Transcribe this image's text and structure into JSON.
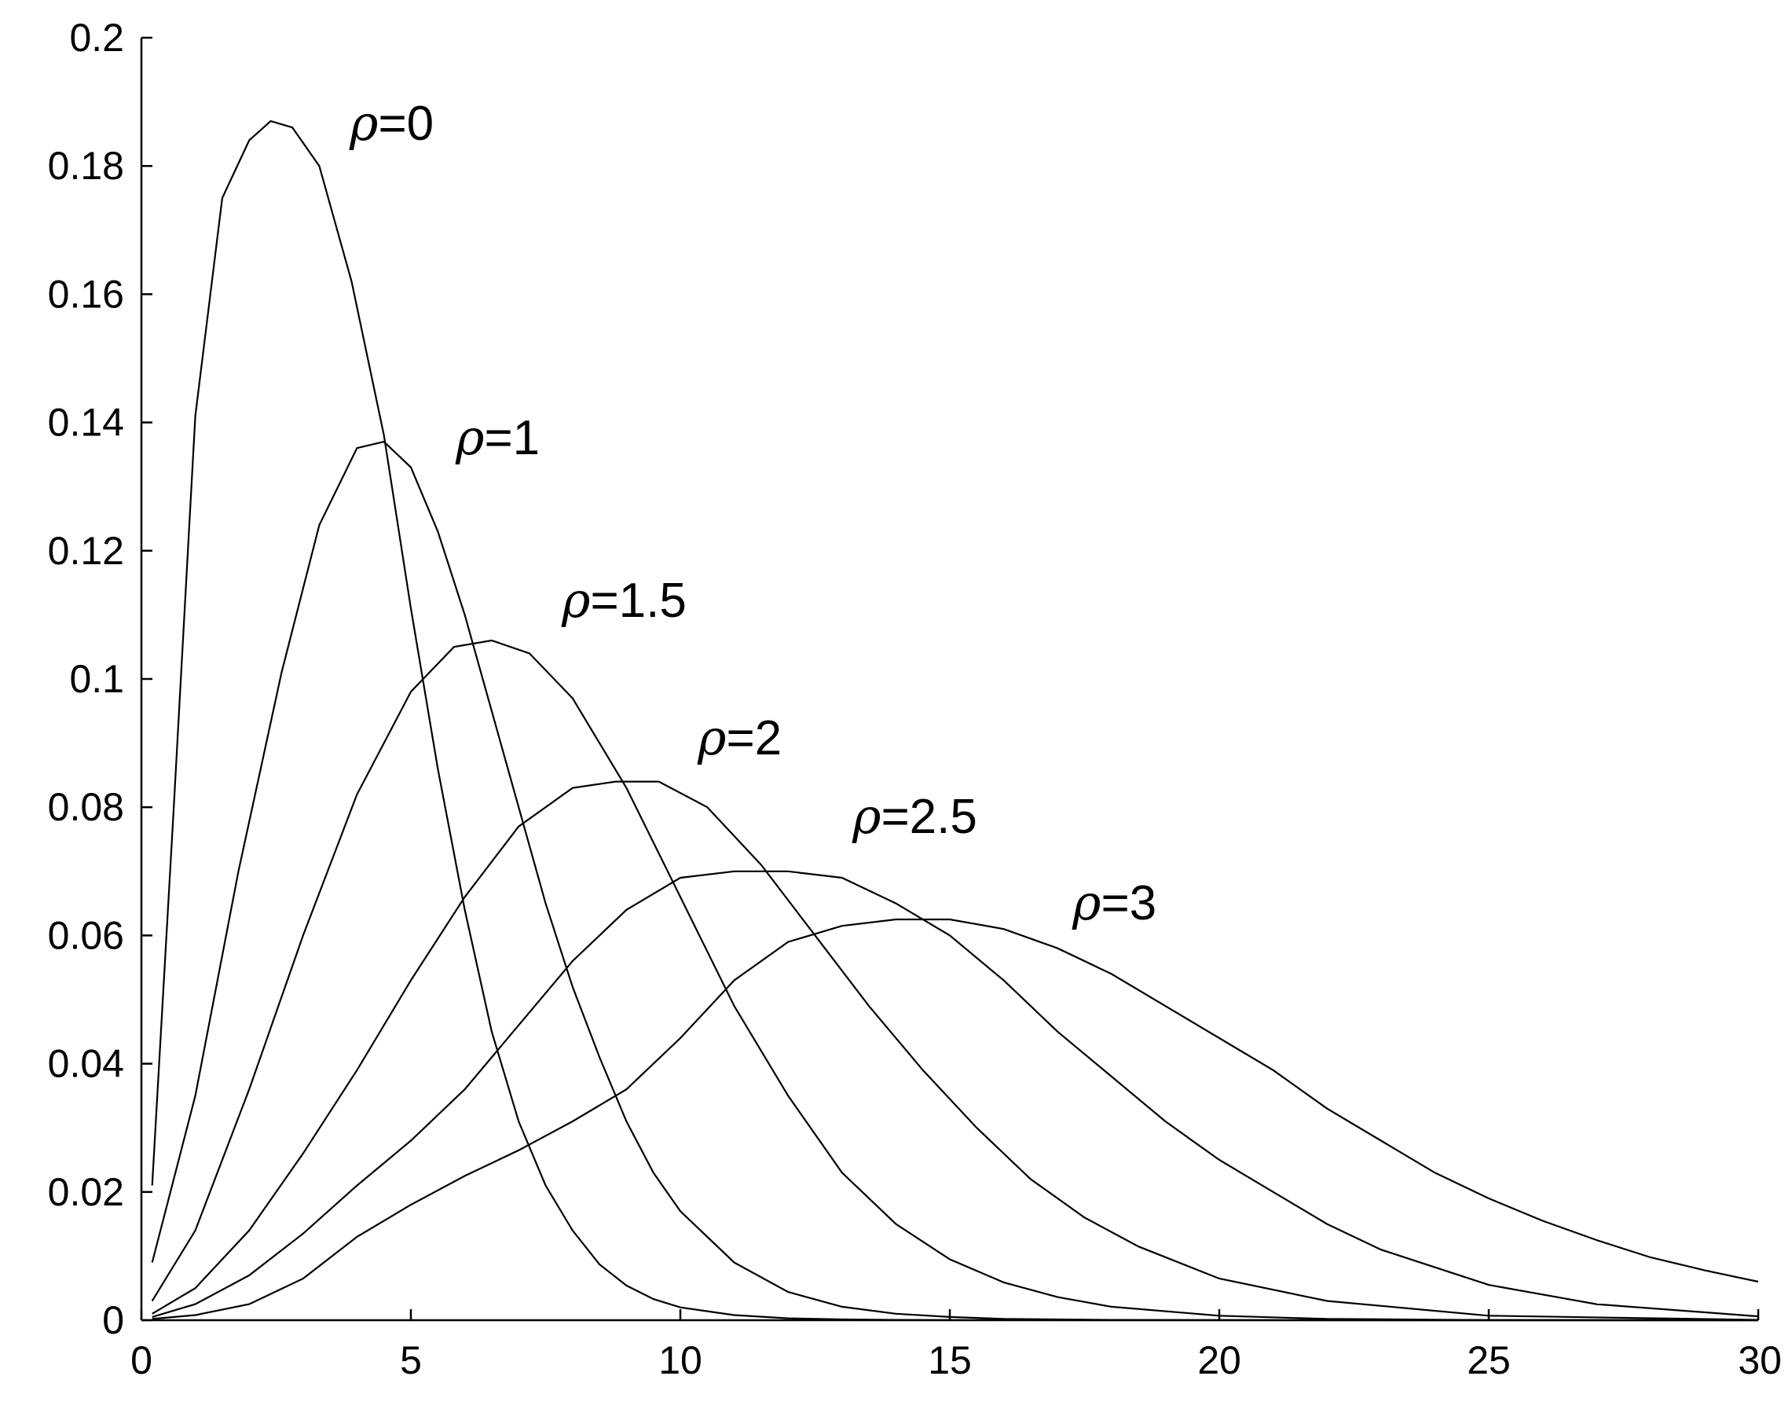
{
  "chart_data": {
    "type": "line",
    "title": "",
    "xlabel": "",
    "ylabel": "",
    "xlim": [
      0,
      30
    ],
    "ylim": [
      0,
      0.2
    ],
    "xticks": [
      0,
      5,
      10,
      15,
      20,
      25,
      30
    ],
    "xtick_labels": [
      "0",
      "5",
      "10",
      "15",
      "20",
      "25",
      "30"
    ],
    "yticks": [
      0,
      0.02,
      0.04,
      0.06,
      0.08,
      0.1,
      0.12,
      0.14,
      0.16,
      0.18,
      0.2
    ],
    "ytick_labels": [
      "0",
      "0.02",
      "0.04",
      "0.06",
      "0.08",
      "0.1",
      "0.12",
      "0.14",
      "0.16",
      "0.18",
      "0.2"
    ],
    "grid": false,
    "line_color": "#000000",
    "series": [
      {
        "name": "ρ=0",
        "label_symbol": "ρ",
        "label_text": "=0",
        "x": [
          0.2,
          0.6,
          1.0,
          1.5,
          2.0,
          2.4,
          2.8,
          3.3,
          3.9,
          4.5,
          5.0,
          5.5,
          6.0,
          6.5,
          7.0,
          7.5,
          8.0,
          8.5,
          9.0,
          9.5,
          10.0,
          11.0,
          12.0,
          13.0,
          14.0,
          15.0,
          16.0,
          18.0,
          20.0,
          25.0,
          30.0
        ],
        "y": [
          0.021,
          0.08,
          0.141,
          0.175,
          0.184,
          0.187,
          0.186,
          0.18,
          0.162,
          0.138,
          0.111,
          0.086,
          0.064,
          0.045,
          0.031,
          0.021,
          0.014,
          0.0087,
          0.0054,
          0.0033,
          0.002,
          0.0008,
          0.0003,
          0.00012,
          5e-05,
          2e-05,
          1e-05,
          0.0,
          0.0,
          0.0,
          0.0
        ]
      },
      {
        "name": "ρ=1",
        "label_symbol": "ρ",
        "label_text": "=1",
        "x": [
          0.2,
          1.0,
          1.8,
          2.6,
          3.3,
          4.0,
          4.5,
          5.0,
          5.5,
          6.0,
          6.5,
          7.0,
          7.5,
          8.0,
          8.5,
          9.0,
          9.5,
          10.0,
          11.0,
          12.0,
          13.0,
          14.0,
          15.0,
          16.0,
          18.0,
          20.0,
          25.0,
          30.0
        ],
        "y": [
          0.009,
          0.035,
          0.07,
          0.101,
          0.124,
          0.136,
          0.137,
          0.133,
          0.123,
          0.11,
          0.095,
          0.08,
          0.065,
          0.052,
          0.041,
          0.031,
          0.023,
          0.017,
          0.009,
          0.0044,
          0.0021,
          0.001,
          0.0005,
          0.0002,
          5e-05,
          1e-05,
          0.0,
          0.0
        ]
      },
      {
        "name": "ρ=1.5",
        "label_symbol": "ρ",
        "label_text": "=1.5",
        "x": [
          0.2,
          1.0,
          2.0,
          3.0,
          4.0,
          5.0,
          5.8,
          6.5,
          7.2,
          8.0,
          9.0,
          10.0,
          11.0,
          12.0,
          13.0,
          14.0,
          15.0,
          16.0,
          17.0,
          18.0,
          20.0,
          22.0,
          25.0,
          30.0
        ],
        "y": [
          0.003,
          0.014,
          0.036,
          0.06,
          0.082,
          0.098,
          0.105,
          0.106,
          0.104,
          0.097,
          0.083,
          0.066,
          0.049,
          0.035,
          0.023,
          0.015,
          0.0095,
          0.0059,
          0.0036,
          0.0021,
          0.0007,
          0.0002,
          3e-05,
          0.0
        ]
      },
      {
        "name": "ρ=2",
        "label_symbol": "ρ",
        "label_text": "=2",
        "x": [
          0.2,
          1.0,
          2.0,
          3.0,
          4.0,
          5.0,
          6.0,
          7.0,
          8.0,
          8.8,
          9.6,
          10.5,
          11.5,
          12.5,
          13.5,
          14.5,
          15.5,
          16.5,
          17.5,
          18.5,
          20.0,
          22.0,
          25.0,
          30.0
        ],
        "y": [
          0.001,
          0.005,
          0.014,
          0.026,
          0.039,
          0.053,
          0.066,
          0.077,
          0.083,
          0.084,
          0.084,
          0.08,
          0.071,
          0.06,
          0.049,
          0.039,
          0.03,
          0.022,
          0.016,
          0.0115,
          0.0065,
          0.003,
          0.0007,
          5e-05
        ]
      },
      {
        "name": "ρ=2.5",
        "label_symbol": "ρ",
        "label_text": "=2.5",
        "x": [
          0.2,
          1.0,
          2.0,
          3.0,
          4.0,
          5.0,
          6.0,
          7.0,
          8.0,
          9.0,
          10.0,
          11.0,
          12.0,
          13.0,
          14.0,
          15.0,
          16.0,
          17.0,
          18.0,
          19.0,
          20.0,
          21.0,
          22.0,
          23.0,
          25.0,
          27.0,
          30.0
        ],
        "y": [
          0.0005,
          0.0025,
          0.007,
          0.0135,
          0.021,
          0.028,
          0.036,
          0.046,
          0.056,
          0.064,
          0.069,
          0.07,
          0.07,
          0.069,
          0.065,
          0.06,
          0.053,
          0.045,
          0.038,
          0.031,
          0.025,
          0.02,
          0.015,
          0.011,
          0.0055,
          0.0025,
          0.0006
        ]
      },
      {
        "name": "ρ=3",
        "label_symbol": "ρ",
        "label_text": "=3",
        "x": [
          0.2,
          1.0,
          2.0,
          3.0,
          4.0,
          5.0,
          6.0,
          7.0,
          8.0,
          9.0,
          10.0,
          11.0,
          12.0,
          13.0,
          14.0,
          15.0,
          16.0,
          17.0,
          18.0,
          19.0,
          20.0,
          21.0,
          22.0,
          23.0,
          24.0,
          25.0,
          26.0,
          27.0,
          28.0,
          29.0,
          30.0
        ],
        "y": [
          0.0002,
          0.0008,
          0.0025,
          0.0065,
          0.013,
          0.018,
          0.0225,
          0.0265,
          0.031,
          0.036,
          0.044,
          0.053,
          0.059,
          0.0615,
          0.0625,
          0.0625,
          0.061,
          0.058,
          0.054,
          0.049,
          0.044,
          0.039,
          0.033,
          0.028,
          0.023,
          0.019,
          0.0155,
          0.0125,
          0.0098,
          0.0078,
          0.006
        ]
      }
    ]
  }
}
